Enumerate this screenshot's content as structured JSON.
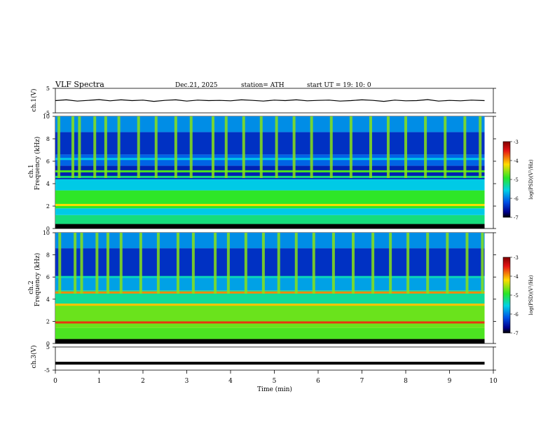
{
  "header": {
    "title": "VLF  Spectra",
    "date": "Dec.21, 2025",
    "station": "station= ATH",
    "start": "start  UT  =    19: 10: 0"
  },
  "chart_data": [
    {
      "type": "line",
      "name": "ch1-waveform",
      "ylabel": "ch.1(V)",
      "ylim": [
        -5,
        5
      ],
      "yticks": [
        5,
        -5
      ],
      "xlim": [
        0,
        10
      ],
      "x": [
        0,
        0.25,
        0.5,
        0.75,
        1.0,
        1.25,
        1.5,
        1.75,
        2.0,
        2.25,
        2.5,
        2.75,
        3.0,
        3.25,
        3.5,
        3.75,
        4.0,
        4.25,
        4.5,
        4.75,
        5.0,
        5.25,
        5.5,
        5.75,
        6.0,
        6.25,
        6.5,
        6.75,
        7.0,
        7.25,
        7.5,
        7.75,
        8.0,
        8.25,
        8.5,
        8.75,
        9.0,
        9.25,
        9.5,
        9.8
      ],
      "y": [
        0.0,
        0.3,
        -0.2,
        0.1,
        0.4,
        -0.1,
        0.3,
        0.0,
        0.2,
        -0.3,
        0.1,
        0.3,
        -0.2,
        0.2,
        0.0,
        0.1,
        -0.1,
        0.3,
        0.1,
        -0.2,
        0.2,
        0.0,
        0.3,
        -0.1,
        0.1,
        0.2,
        -0.2,
        0.0,
        0.3,
        0.1,
        -0.3,
        0.2,
        -0.1,
        0.0,
        0.4,
        -0.2,
        0.1,
        -0.1,
        0.2,
        0.0
      ]
    },
    {
      "type": "heatmap",
      "name": "ch1-spectrogram",
      "ylabel_top": "Frequency  (kHz)",
      "ylabel_bottom": "ch.1",
      "ylim": [
        0,
        10
      ],
      "yticks": [
        0,
        2,
        4,
        6,
        8,
        10
      ],
      "xlim": [
        0,
        10
      ],
      "data_extent_min": 9.8,
      "colorbar": {
        "label": "log(PSD)(V²/Hz)",
        "range": [
          -7,
          -3
        ],
        "ticks": [
          -3,
          -4,
          -5,
          -6,
          -7
        ]
      },
      "bands": [
        {
          "from": 0.0,
          "to": 0.4,
          "level": -7.0
        },
        {
          "from": 0.4,
          "to": 1.2,
          "level": -5.2
        },
        {
          "from": 1.2,
          "to": 1.8,
          "level": -5.6
        },
        {
          "from": 1.8,
          "to": 3.4,
          "level": -4.9
        },
        {
          "from": 3.4,
          "to": 4.4,
          "level": -5.6
        },
        {
          "from": 4.4,
          "to": 5.6,
          "level": -6.5
        },
        {
          "from": 5.6,
          "to": 6.6,
          "level": -6.1
        },
        {
          "from": 6.6,
          "to": 8.6,
          "level": -6.4
        },
        {
          "from": 8.6,
          "to": 10.0,
          "level": -5.9
        }
      ],
      "lines": [
        {
          "f": 0.3,
          "level": -7.0
        },
        {
          "f": 2.1,
          "level": -4.2
        },
        {
          "f": 4.6,
          "level": -5.2
        },
        {
          "f": 5.1,
          "level": -4.8
        },
        {
          "f": 6.2,
          "level": -5.6
        }
      ],
      "bursts": [
        0.08,
        0.4,
        0.55,
        0.9,
        1.15,
        1.45,
        1.9,
        2.3,
        2.75,
        3.1,
        3.6,
        3.9,
        4.3,
        4.7,
        5.05,
        5.45,
        5.85,
        6.3,
        6.75,
        7.2,
        7.6,
        8.0,
        8.45,
        8.9,
        9.35,
        9.7
      ]
    },
    {
      "type": "heatmap",
      "name": "ch2-spectrogram",
      "ylabel_top": "Frequency  (kHz)",
      "ylabel_bottom": "ch.2",
      "ylim": [
        0,
        10
      ],
      "yticks": [
        0,
        2,
        4,
        6,
        8,
        10
      ],
      "xlim": [
        0,
        10
      ],
      "data_extent_min": 9.8,
      "colorbar": {
        "label": "log(PSD)(V²/Hz)",
        "range": [
          -7,
          -3
        ],
        "ticks": [
          -3,
          -4,
          -5,
          -6,
          -7
        ]
      },
      "bands": [
        {
          "from": 0.0,
          "to": 0.4,
          "level": -7.0
        },
        {
          "from": 0.4,
          "to": 1.4,
          "level": -4.8
        },
        {
          "from": 1.4,
          "to": 3.6,
          "level": -4.7
        },
        {
          "from": 3.6,
          "to": 4.8,
          "level": -5.3
        },
        {
          "from": 4.8,
          "to": 6.0,
          "level": -5.8
        },
        {
          "from": 6.0,
          "to": 8.6,
          "level": -6.4
        },
        {
          "from": 8.6,
          "to": 10.0,
          "level": -5.9
        }
      ],
      "lines": [
        {
          "f": 0.3,
          "level": -7.0
        },
        {
          "f": 1.9,
          "level": -3.6
        },
        {
          "f": 3.5,
          "level": -4.1
        },
        {
          "f": 4.6,
          "level": -3.9
        },
        {
          "f": 6.0,
          "level": -5.4
        }
      ],
      "bursts": [
        0.1,
        0.45,
        0.6,
        0.95,
        1.2,
        1.5,
        1.95,
        2.35,
        2.8,
        3.15,
        3.65,
        3.95,
        4.35,
        4.75,
        5.1,
        5.5,
        5.9,
        6.35,
        6.8,
        7.25,
        7.65,
        8.05,
        8.5,
        8.95,
        9.4,
        9.75
      ]
    },
    {
      "type": "line",
      "name": "ch3-waveform",
      "ylabel": "ch.3(V)",
      "ylim": [
        -5,
        5
      ],
      "yticks": [
        5,
        -5
      ],
      "xlim": [
        0,
        10
      ],
      "xlabel": "Time  (min)",
      "xticks": [
        0,
        1,
        2,
        3,
        4,
        5,
        6,
        7,
        8,
        9,
        10
      ],
      "x": [
        0,
        9.8
      ],
      "y": [
        -2.0,
        -2.0
      ]
    }
  ]
}
